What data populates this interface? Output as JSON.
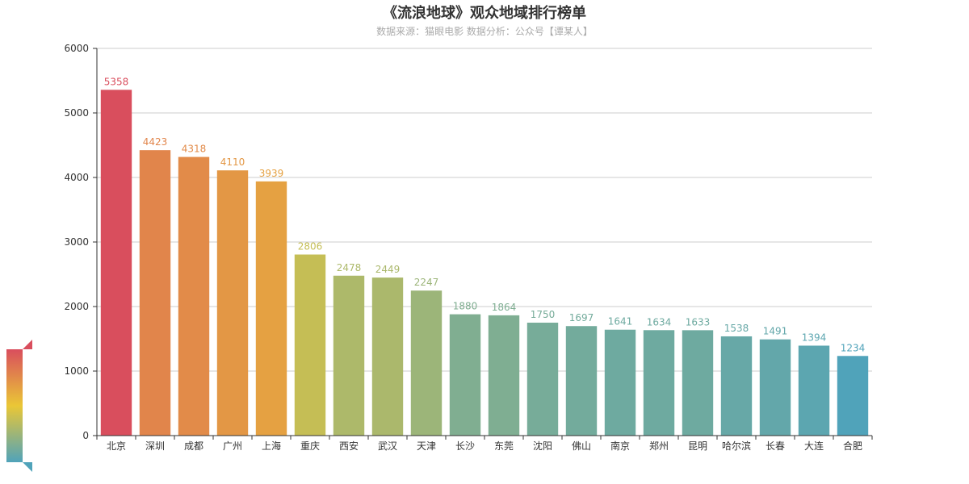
{
  "chart_data": {
    "type": "bar",
    "title": "《流浪地球》观众地域排行榜单",
    "subtitle": "数据来源：猫眼电影 数据分析：公众号【谭某人】",
    "categories": [
      "北京",
      "深圳",
      "成都",
      "广州",
      "上海",
      "重庆",
      "西安",
      "武汉",
      "天津",
      "长沙",
      "东莞",
      "沈阳",
      "佛山",
      "南京",
      "郑州",
      "昆明",
      "哈尔滨",
      "长春",
      "大连",
      "合肥"
    ],
    "values": [
      5358,
      4423,
      4318,
      4110,
      3939,
      2806,
      2478,
      2449,
      2247,
      1880,
      1864,
      1750,
      1697,
      1641,
      1634,
      1633,
      1538,
      1491,
      1394,
      1234
    ],
    "ylim": [
      0,
      6000
    ],
    "yticks": [
      "0",
      "1000",
      "2000",
      "3000",
      "4000",
      "5000",
      "6000"
    ],
    "grid": true,
    "visual_map": {
      "min": 1234,
      "max": 5358,
      "colors": [
        "#d94e5d",
        "#eac736",
        "#50a3ba"
      ]
    }
  }
}
